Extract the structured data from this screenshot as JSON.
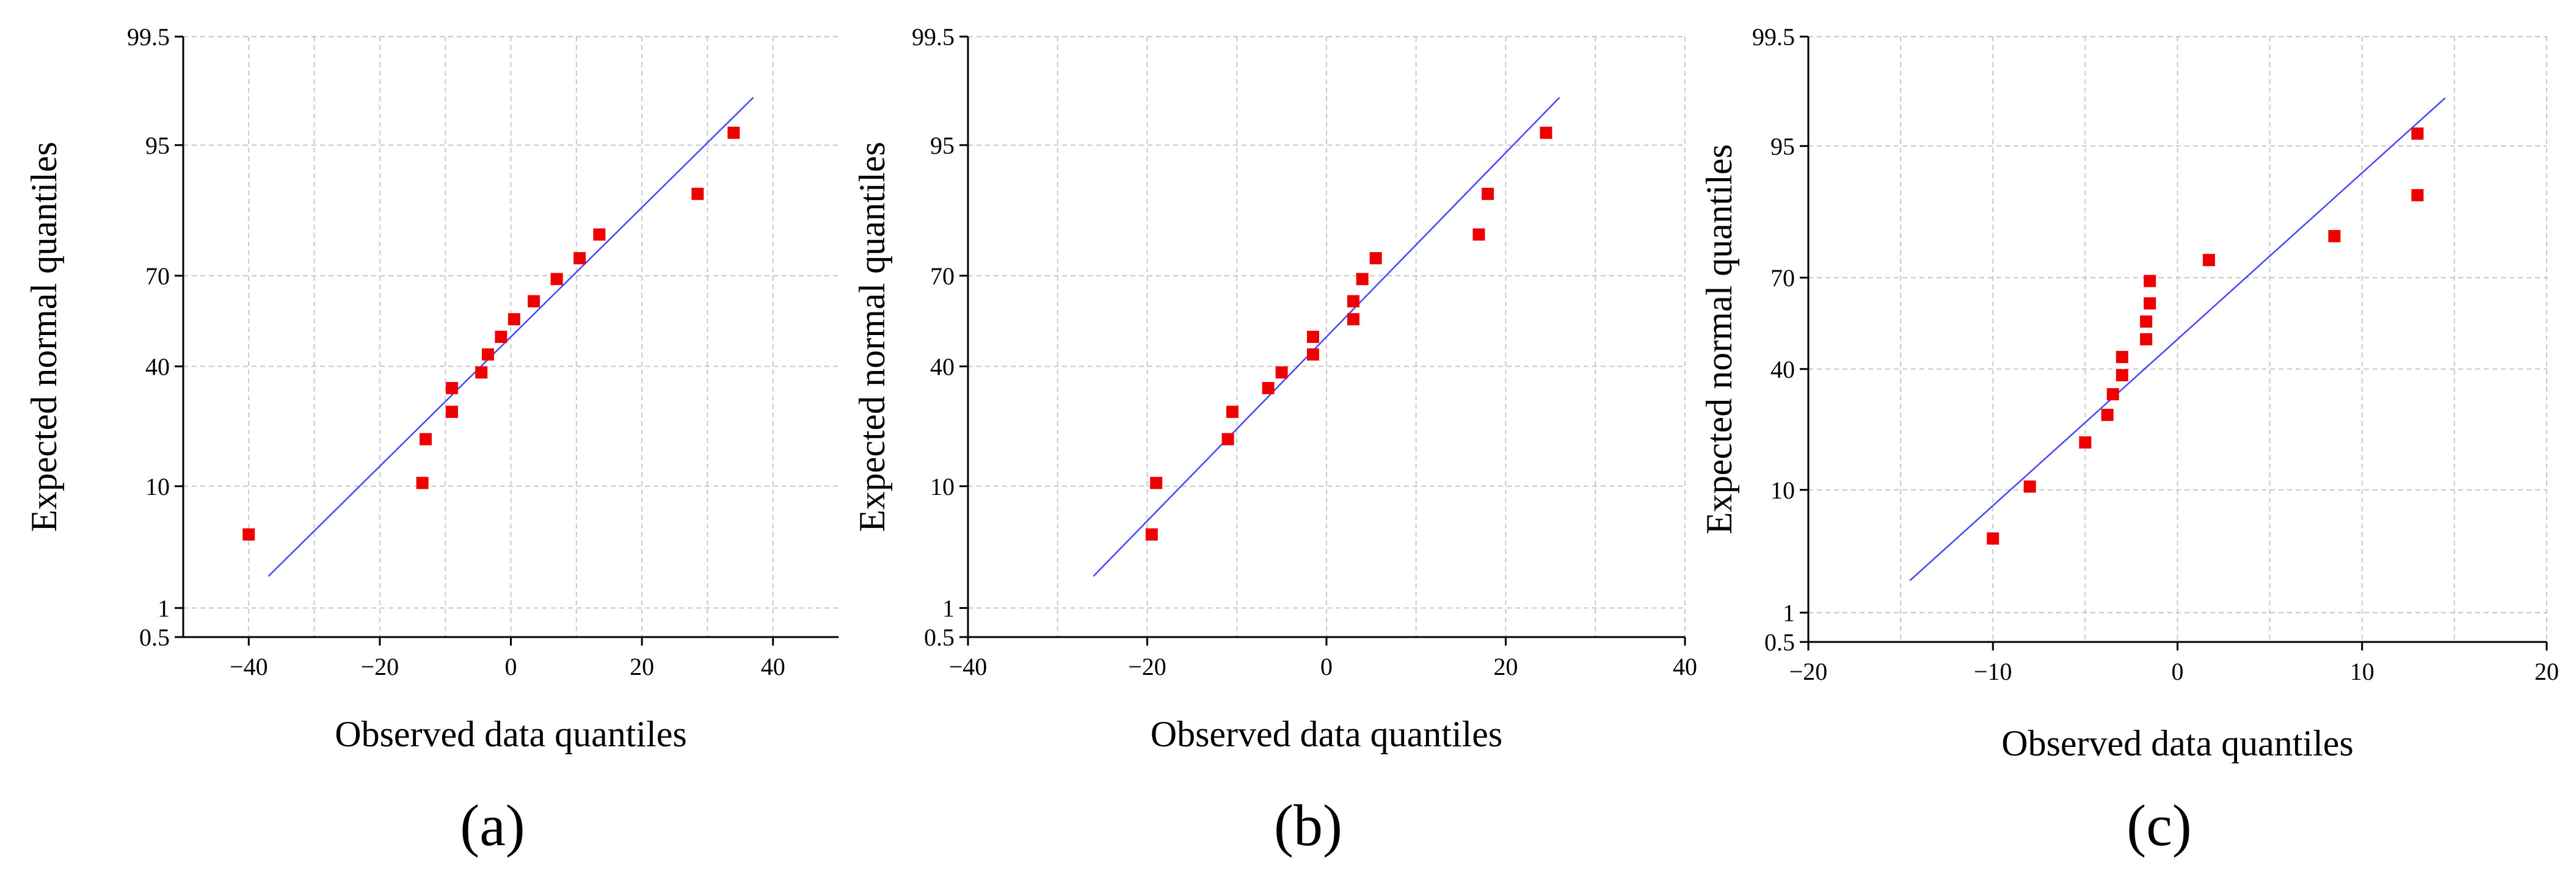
{
  "chart_data": [
    {
      "type": "scatter",
      "panel_label": "(a)",
      "xlabel": "Observed data quantiles",
      "ylabel": "Expected normal quantiles",
      "xlim": [
        -50,
        50
      ],
      "x_ticks": [
        -40,
        -20,
        0,
        20,
        40
      ],
      "x_tick_labels": [
        "−40",
        "−20",
        "0",
        "20",
        "40"
      ],
      "y_scale": "normal-probability (%)",
      "y_ticks": [
        0.5,
        1,
        10,
        40,
        70,
        95,
        99.5
      ],
      "y_tick_labels": [
        "0.5",
        "1",
        "10",
        "40",
        "70",
        "95",
        "99.5"
      ],
      "grid": true,
      "points": [
        {
          "x": -40,
          "y": 4.5
        },
        {
          "x": -13.5,
          "y": 10.5
        },
        {
          "x": -13,
          "y": 19
        },
        {
          "x": -9,
          "y": 26
        },
        {
          "x": -9,
          "y": 33
        },
        {
          "x": -4.5,
          "y": 38
        },
        {
          "x": -3.5,
          "y": 44
        },
        {
          "x": -1.5,
          "y": 50
        },
        {
          "x": 0.5,
          "y": 56
        },
        {
          "x": 3.5,
          "y": 62
        },
        {
          "x": 7,
          "y": 69
        },
        {
          "x": 10.5,
          "y": 75
        },
        {
          "x": 13.5,
          "y": 81
        },
        {
          "x": 28.5,
          "y": 89
        },
        {
          "x": 34,
          "y": 96
        }
      ],
      "fit_line": {
        "x_start": -37,
        "y_start": 2,
        "x_end": 37,
        "y_end": 98
      }
    },
    {
      "type": "scatter",
      "panel_label": "(b)",
      "xlabel": "Observed data quantiles",
      "ylabel": "Expected normal quantiles",
      "xlim": [
        -40,
        40
      ],
      "x_ticks": [
        -40,
        -20,
        0,
        20,
        40
      ],
      "x_tick_labels": [
        "−40",
        "−20",
        "0",
        "20",
        "40"
      ],
      "y_scale": "normal-probability (%)",
      "y_ticks": [
        0.5,
        1,
        10,
        40,
        70,
        95,
        99.5
      ],
      "y_tick_labels": [
        "0.5",
        "1",
        "10",
        "40",
        "70",
        "95",
        "99.5"
      ],
      "grid": true,
      "points": [
        {
          "x": -19.5,
          "y": 4.5
        },
        {
          "x": -19,
          "y": 10.5
        },
        {
          "x": -11,
          "y": 19
        },
        {
          "x": -10.5,
          "y": 26
        },
        {
          "x": -6.5,
          "y": 33
        },
        {
          "x": -5,
          "y": 38
        },
        {
          "x": -1.5,
          "y": 44
        },
        {
          "x": -1.5,
          "y": 50
        },
        {
          "x": 3,
          "y": 56
        },
        {
          "x": 3,
          "y": 62
        },
        {
          "x": 4,
          "y": 69
        },
        {
          "x": 5.5,
          "y": 75
        },
        {
          "x": 17,
          "y": 81
        },
        {
          "x": 18,
          "y": 89
        },
        {
          "x": 24.5,
          "y": 96
        }
      ],
      "fit_line": {
        "x_start": -26,
        "y_start": 2,
        "x_end": 26,
        "y_end": 98
      }
    },
    {
      "type": "scatter",
      "panel_label": "(c)",
      "xlabel": "Observed data quantiles",
      "ylabel": "Expected normal quantiles",
      "xlim": [
        -20,
        20
      ],
      "x_ticks": [
        -20,
        -10,
        0,
        10,
        20
      ],
      "x_tick_labels": [
        "−20",
        "−10",
        "0",
        "10",
        "20"
      ],
      "y_scale": "normal-probability (%)",
      "y_ticks": [
        0.5,
        1,
        10,
        40,
        70,
        95,
        99.5
      ],
      "y_tick_labels": [
        "0.5",
        "1",
        "10",
        "40",
        "70",
        "95",
        "99.5"
      ],
      "grid": true,
      "points": [
        {
          "x": -10,
          "y": 4.5
        },
        {
          "x": -8,
          "y": 10.5
        },
        {
          "x": -5,
          "y": 19
        },
        {
          "x": -3.8,
          "y": 26
        },
        {
          "x": -3.5,
          "y": 32
        },
        {
          "x": -3,
          "y": 38
        },
        {
          "x": -3,
          "y": 44
        },
        {
          "x": -1.7,
          "y": 50
        },
        {
          "x": -1.7,
          "y": 56
        },
        {
          "x": -1.5,
          "y": 62
        },
        {
          "x": -1.5,
          "y": 69
        },
        {
          "x": 1.7,
          "y": 75
        },
        {
          "x": 8.5,
          "y": 81
        },
        {
          "x": 13,
          "y": 89
        },
        {
          "x": 13,
          "y": 96
        }
      ],
      "fit_line": {
        "x_start": -14.5,
        "y_start": 2,
        "x_end": 14.5,
        "y_end": 98
      }
    }
  ],
  "colors": {
    "point": "#ee0000",
    "fit_line": "#4646ff",
    "grid": "#c8c8c8",
    "axis": "#000000"
  }
}
